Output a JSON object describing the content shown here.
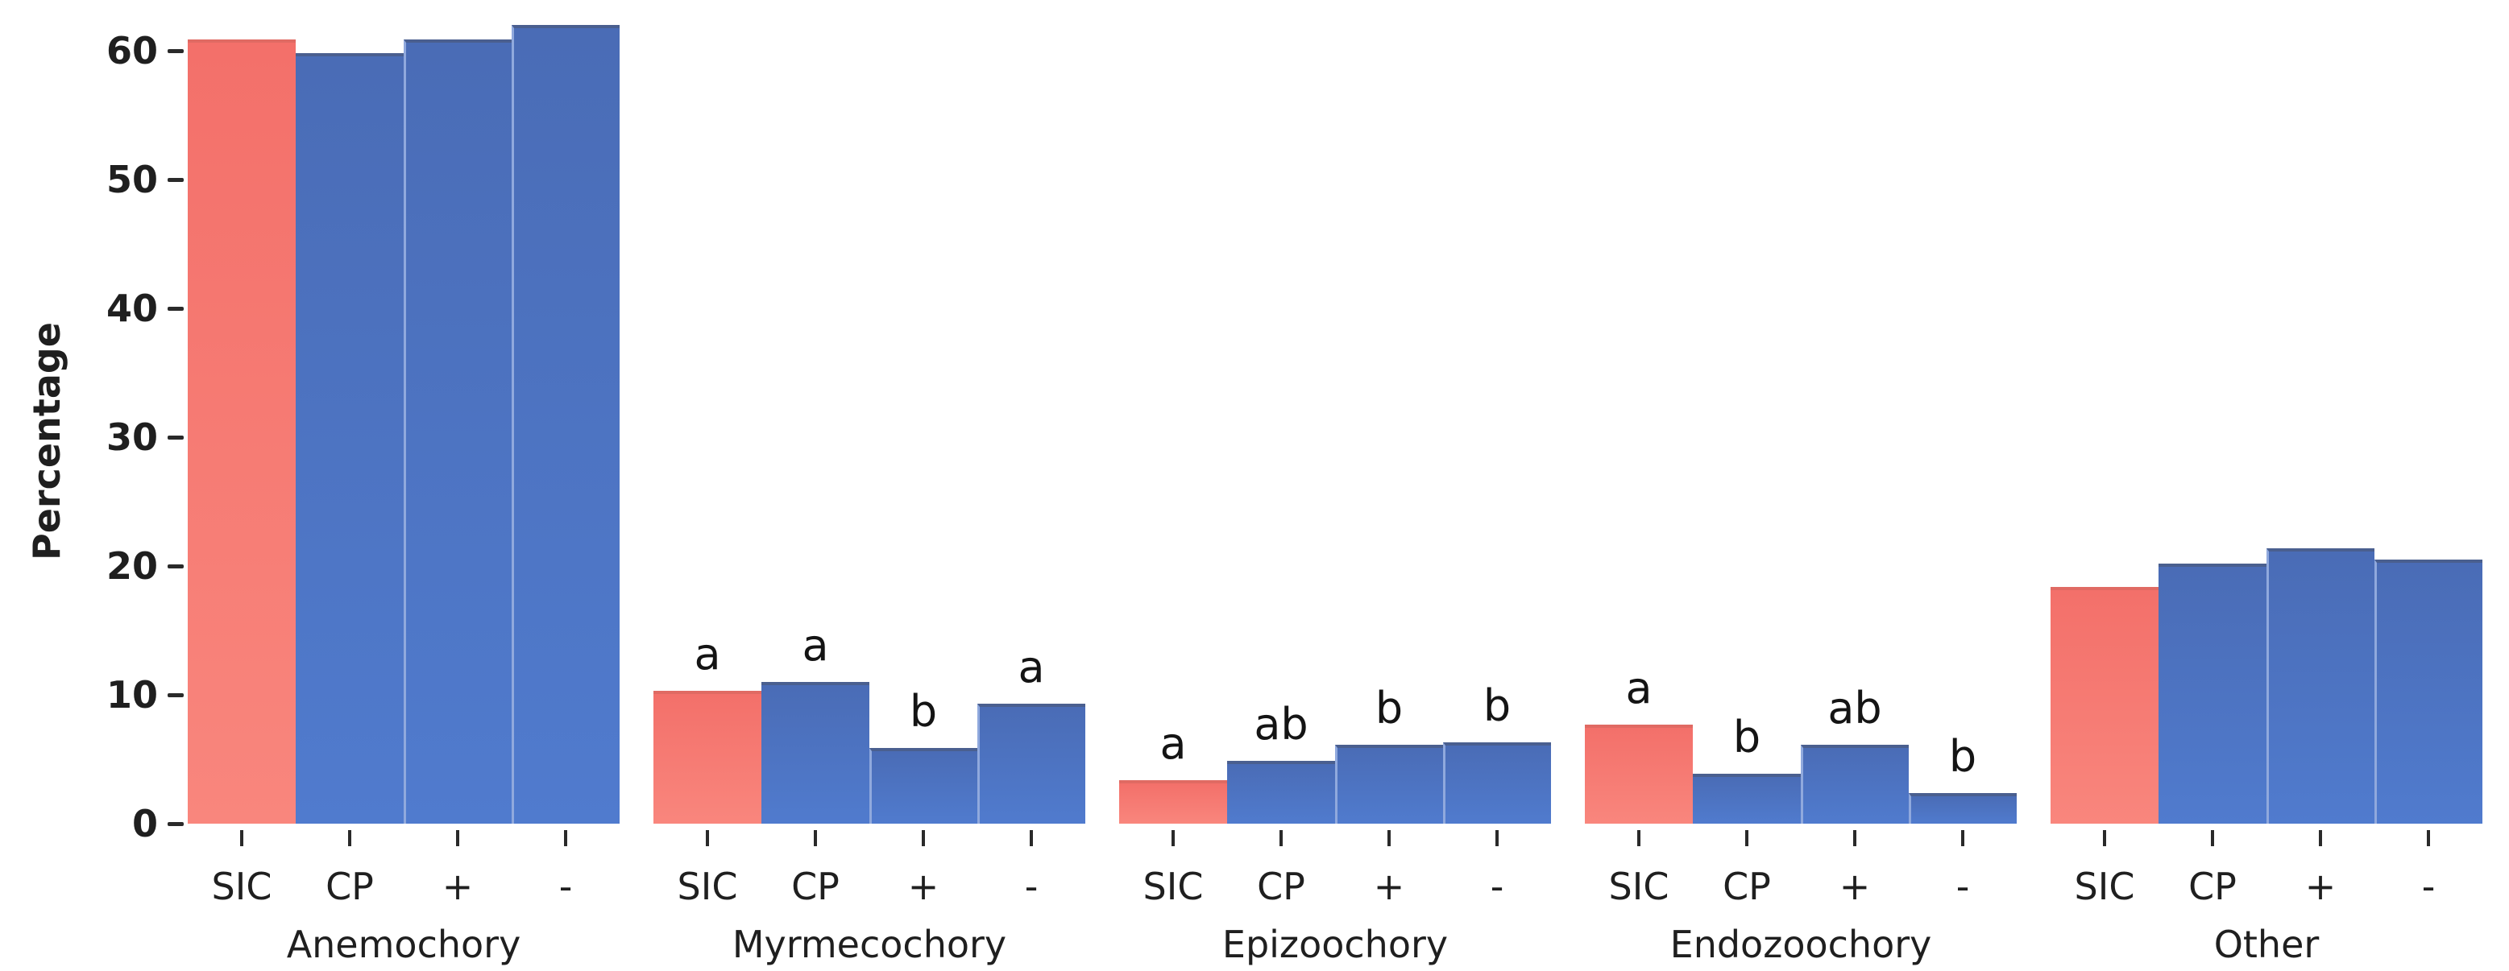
{
  "y_axis": {
    "label": "Percentage",
    "tick_labels": [
      "0",
      "10",
      "20",
      "30",
      "40",
      "50",
      "60"
    ],
    "tick_values": [
      0,
      10,
      20,
      30,
      40,
      50,
      60
    ]
  },
  "colors": {
    "sic_bar": "#f7766e",
    "treatment_bar": "#4d74c4",
    "treatment_bar_top_edge": "#4a5f8f",
    "sic_bar_top_edge": "#e06a63",
    "bar_separator": "#90a9dd",
    "text": "#1f1f1f",
    "background": "#ffffff"
  },
  "chart_data": {
    "type": "bar",
    "title": "",
    "xlabel": "",
    "ylabel": "Percentage",
    "ylim": [
      0,
      64
    ],
    "grid": false,
    "legend_position": "none",
    "bar_labels": [
      "SIC",
      "CP",
      "+",
      "-"
    ],
    "bar_colors": [
      "#f7766e",
      "#4d74c4",
      "#4d74c4",
      "#4d74c4"
    ],
    "groups": [
      {
        "label": "Anemochory",
        "values": [
          60.9,
          59.8,
          60.9,
          62.0
        ],
        "letters": [
          "",
          "",
          "",
          ""
        ]
      },
      {
        "label": "Myrmecochory",
        "values": [
          10.3,
          11.0,
          5.9,
          9.3
        ],
        "letters": [
          "a",
          "a",
          "b",
          "a"
        ]
      },
      {
        "label": "Epizoochory",
        "values": [
          3.4,
          4.9,
          6.1,
          6.3
        ],
        "letters": [
          "a",
          "ab",
          "b",
          "b"
        ]
      },
      {
        "label": "Endozoochory",
        "values": [
          7.7,
          3.9,
          6.1,
          2.4
        ],
        "letters": [
          "a",
          "b",
          "ab",
          "b"
        ]
      },
      {
        "label": "Other",
        "values": [
          18.4,
          20.2,
          21.4,
          20.5
        ],
        "letters": [
          "",
          "",
          "",
          ""
        ]
      }
    ]
  }
}
